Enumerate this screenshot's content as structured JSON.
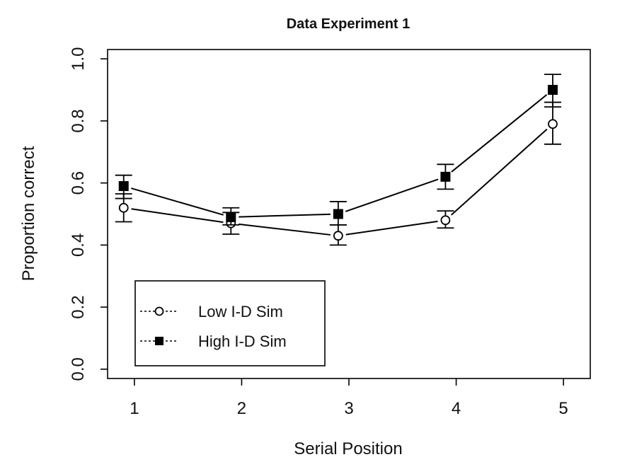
{
  "chart_data": {
    "type": "line",
    "title": "Data Experiment 1",
    "xlabel": "Serial Position",
    "ylabel": "Proportion correct",
    "x": [
      1,
      2,
      3,
      4,
      5
    ],
    "xlim": [
      0.75,
      5.25
    ],
    "ylim": [
      -0.03,
      1.03
    ],
    "xticks": [
      "1",
      "2",
      "3",
      "4",
      "5"
    ],
    "yticks": [
      "0.0",
      "0.2",
      "0.4",
      "0.6",
      "0.8",
      "1.0"
    ],
    "x_offset": 0.1,
    "grid": false,
    "legend_position": "bottom-left",
    "series": [
      {
        "name": "Low I-D Sim",
        "marker": "open-circle",
        "color": "#000000",
        "values": [
          0.52,
          0.47,
          0.43,
          0.48,
          0.79
        ],
        "error_low": [
          0.475,
          0.435,
          0.4,
          0.455,
          0.725
        ],
        "error_high": [
          0.565,
          0.505,
          0.465,
          0.51,
          0.86
        ]
      },
      {
        "name": "High I-D Sim",
        "marker": "filled-square",
        "color": "#000000",
        "values": [
          0.59,
          0.49,
          0.5,
          0.62,
          0.9
        ],
        "error_low": [
          0.55,
          0.465,
          0.465,
          0.58,
          0.845
        ],
        "error_high": [
          0.625,
          0.52,
          0.54,
          0.66,
          0.95
        ]
      }
    ]
  }
}
